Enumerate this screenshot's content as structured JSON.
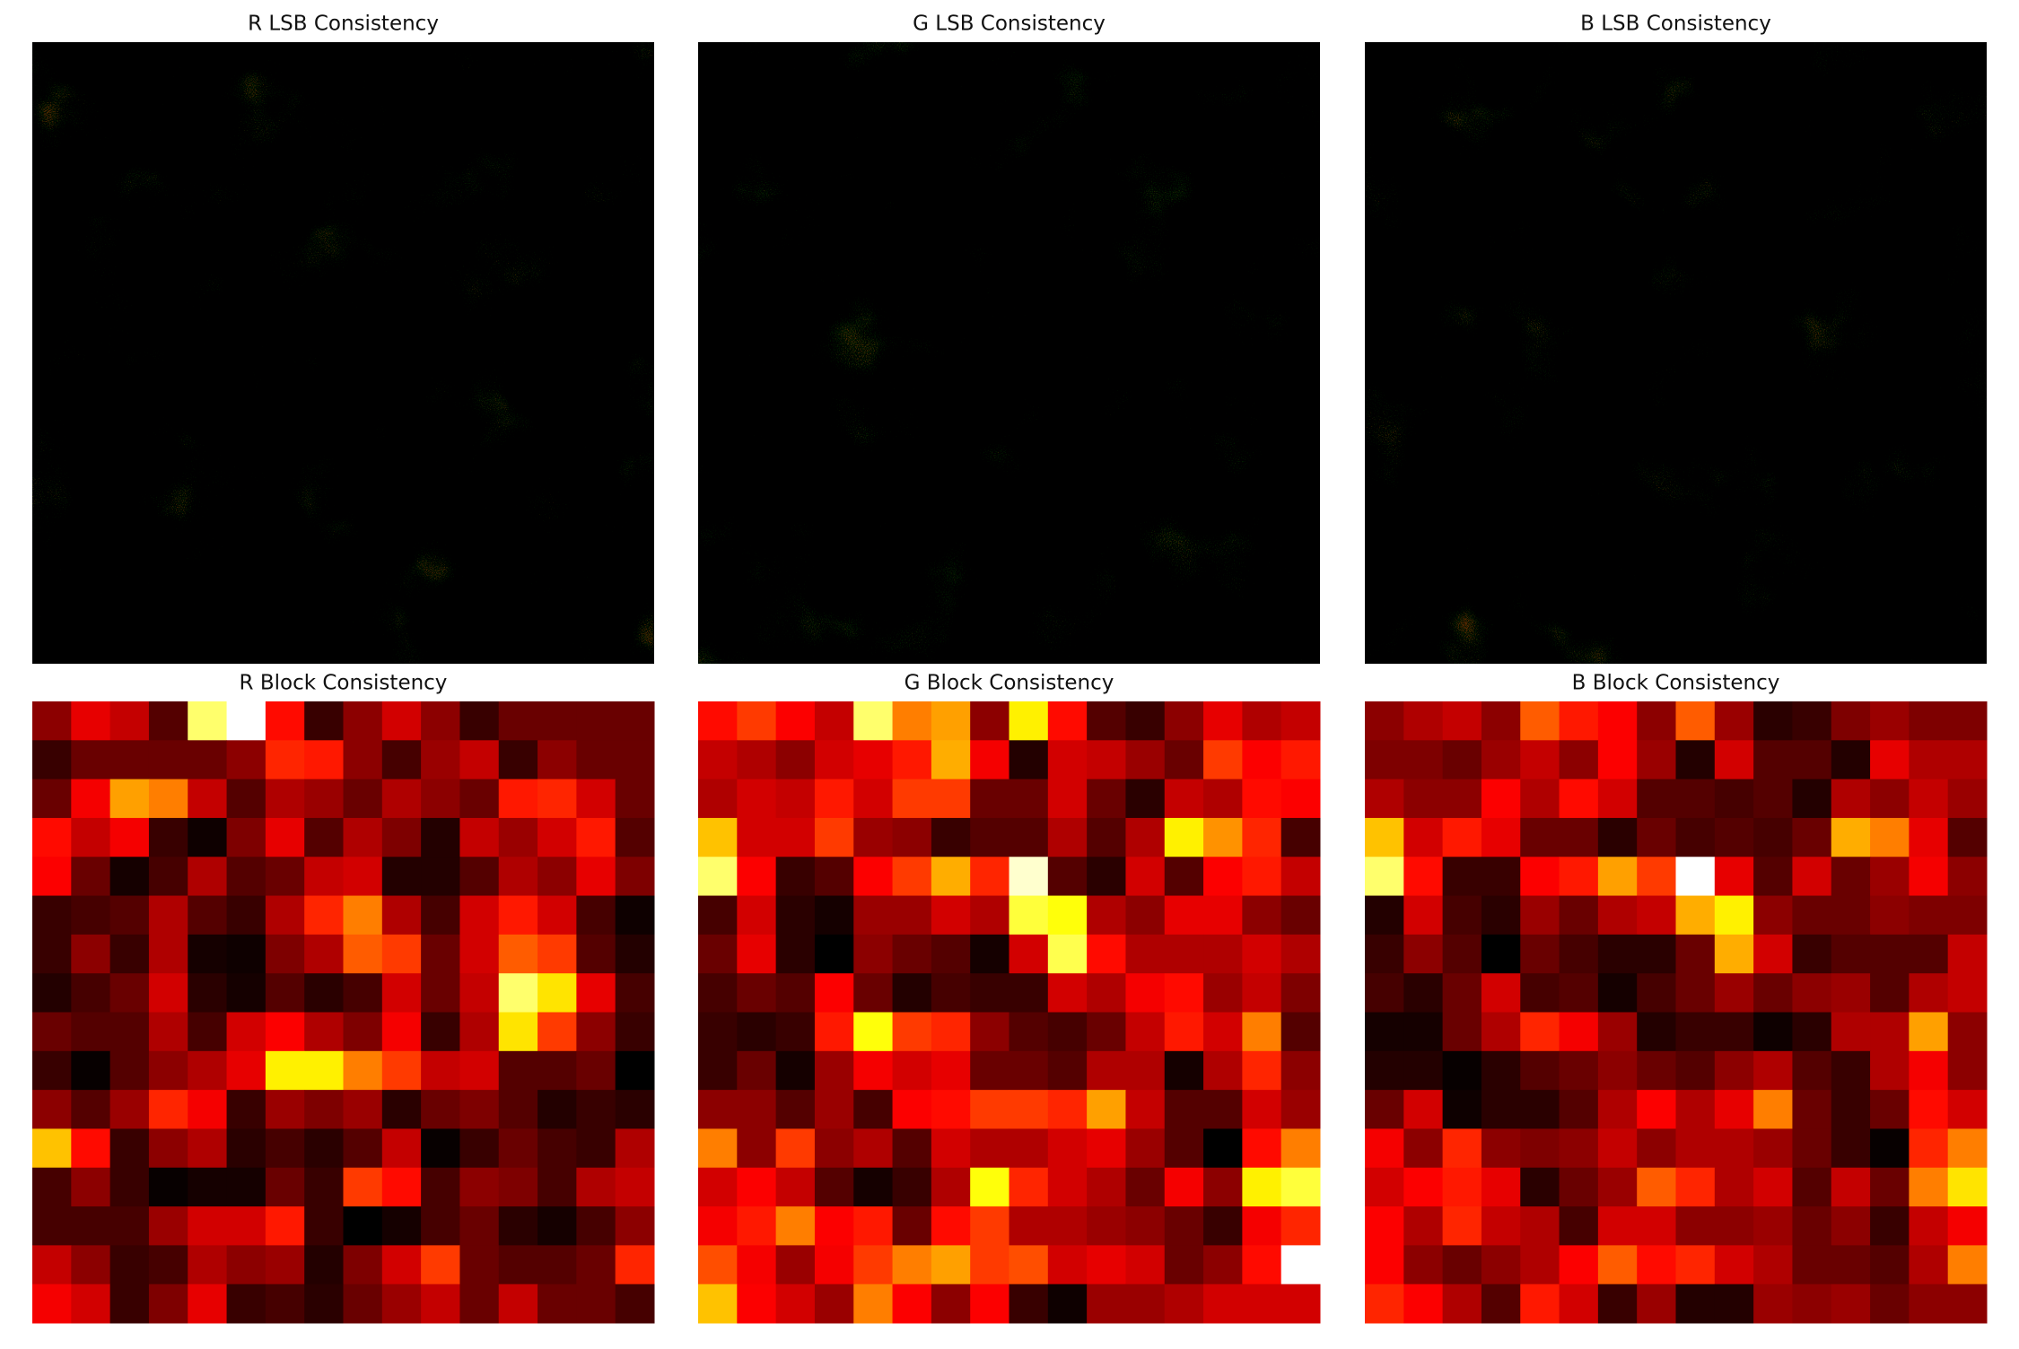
{
  "chart_data": [
    {
      "type": "image",
      "title": "R LSB Consistency",
      "colormap": "hot"
    },
    {
      "type": "image",
      "title": "G LSB Consistency",
      "colormap": "hot"
    },
    {
      "type": "image",
      "title": "B LSB Consistency",
      "colormap": "hot"
    },
    {
      "type": "heatmap",
      "title": "R Block Consistency",
      "colormap": "hot",
      "clim": [
        0,
        1
      ],
      "values": [
        [
          0.2,
          0.33,
          0.28,
          0.12,
          0.85,
          1.0,
          0.38,
          0.08,
          0.2,
          0.3,
          0.2,
          0.08,
          0.15,
          0.15,
          0.15,
          0.15
        ],
        [
          0.08,
          0.15,
          0.15,
          0.15,
          0.15,
          0.2,
          0.42,
          0.4,
          0.2,
          0.1,
          0.22,
          0.28,
          0.08,
          0.2,
          0.15,
          0.15
        ],
        [
          0.15,
          0.35,
          0.6,
          0.55,
          0.28,
          0.12,
          0.25,
          0.22,
          0.15,
          0.25,
          0.2,
          0.15,
          0.4,
          0.42,
          0.3,
          0.15
        ],
        [
          0.38,
          0.28,
          0.35,
          0.08,
          0.02,
          0.18,
          0.33,
          0.12,
          0.25,
          0.18,
          0.05,
          0.28,
          0.22,
          0.3,
          0.4,
          0.12
        ],
        [
          0.36,
          0.15,
          0.03,
          0.1,
          0.25,
          0.12,
          0.15,
          0.28,
          0.3,
          0.05,
          0.05,
          0.12,
          0.25,
          0.2,
          0.33,
          0.18
        ],
        [
          0.08,
          0.1,
          0.12,
          0.25,
          0.12,
          0.08,
          0.25,
          0.42,
          0.55,
          0.25,
          0.1,
          0.3,
          0.4,
          0.3,
          0.1,
          0.02
        ],
        [
          0.08,
          0.2,
          0.08,
          0.25,
          0.03,
          0.02,
          0.18,
          0.25,
          0.5,
          0.45,
          0.15,
          0.3,
          0.5,
          0.45,
          0.12,
          0.05
        ],
        [
          0.05,
          0.1,
          0.15,
          0.3,
          0.06,
          0.03,
          0.12,
          0.06,
          0.1,
          0.3,
          0.15,
          0.28,
          0.85,
          0.7,
          0.33,
          0.1
        ],
        [
          0.15,
          0.12,
          0.12,
          0.25,
          0.1,
          0.3,
          0.36,
          0.25,
          0.18,
          0.35,
          0.08,
          0.25,
          0.7,
          0.45,
          0.2,
          0.08
        ],
        [
          0.08,
          0.01,
          0.12,
          0.2,
          0.25,
          0.33,
          0.72,
          0.72,
          0.55,
          0.45,
          0.28,
          0.3,
          0.12,
          0.12,
          0.15,
          0.0
        ],
        [
          0.2,
          0.12,
          0.22,
          0.42,
          0.35,
          0.08,
          0.22,
          0.18,
          0.22,
          0.06,
          0.15,
          0.18,
          0.12,
          0.05,
          0.08,
          0.06
        ],
        [
          0.65,
          0.38,
          0.08,
          0.2,
          0.25,
          0.06,
          0.1,
          0.06,
          0.12,
          0.28,
          0.01,
          0.08,
          0.15,
          0.1,
          0.08,
          0.25
        ],
        [
          0.1,
          0.2,
          0.08,
          0.01,
          0.03,
          0.03,
          0.15,
          0.08,
          0.45,
          0.38,
          0.1,
          0.2,
          0.18,
          0.1,
          0.25,
          0.28
        ],
        [
          0.1,
          0.1,
          0.1,
          0.22,
          0.3,
          0.3,
          0.4,
          0.08,
          0.0,
          0.03,
          0.1,
          0.15,
          0.06,
          0.03,
          0.1,
          0.2
        ],
        [
          0.28,
          0.2,
          0.08,
          0.1,
          0.25,
          0.2,
          0.22,
          0.05,
          0.18,
          0.3,
          0.45,
          0.15,
          0.12,
          0.12,
          0.15,
          0.42
        ],
        [
          0.35,
          0.3,
          0.08,
          0.18,
          0.33,
          0.08,
          0.1,
          0.06,
          0.15,
          0.22,
          0.28,
          0.15,
          0.28,
          0.15,
          0.15,
          0.1
        ]
      ]
    },
    {
      "type": "heatmap",
      "title": "G Block Consistency",
      "colormap": "hot",
      "clim": [
        0,
        1
      ],
      "values": [
        [
          0.38,
          0.45,
          0.36,
          0.28,
          0.85,
          0.55,
          0.6,
          0.2,
          0.72,
          0.38,
          0.12,
          0.08,
          0.2,
          0.33,
          0.25,
          0.28
        ],
        [
          0.28,
          0.25,
          0.2,
          0.3,
          0.33,
          0.4,
          0.62,
          0.35,
          0.05,
          0.3,
          0.28,
          0.22,
          0.15,
          0.45,
          0.36,
          0.4
        ],
        [
          0.25,
          0.3,
          0.28,
          0.4,
          0.3,
          0.45,
          0.45,
          0.15,
          0.15,
          0.3,
          0.15,
          0.06,
          0.28,
          0.25,
          0.38,
          0.36
        ],
        [
          0.65,
          0.3,
          0.3,
          0.45,
          0.22,
          0.2,
          0.08,
          0.12,
          0.12,
          0.25,
          0.12,
          0.25,
          0.72,
          0.58,
          0.42,
          0.1
        ],
        [
          0.85,
          0.36,
          0.08,
          0.12,
          0.36,
          0.45,
          0.62,
          0.42,
          0.95,
          0.12,
          0.06,
          0.3,
          0.12,
          0.36,
          0.4,
          0.28
        ],
        [
          0.1,
          0.3,
          0.06,
          0.03,
          0.22,
          0.22,
          0.3,
          0.25,
          0.8,
          0.75,
          0.25,
          0.2,
          0.33,
          0.33,
          0.2,
          0.15
        ],
        [
          0.15,
          0.33,
          0.06,
          0.0,
          0.2,
          0.15,
          0.12,
          0.03,
          0.3,
          0.82,
          0.38,
          0.25,
          0.25,
          0.25,
          0.3,
          0.25
        ],
        [
          0.1,
          0.15,
          0.12,
          0.36,
          0.15,
          0.05,
          0.1,
          0.08,
          0.08,
          0.3,
          0.25,
          0.35,
          0.38,
          0.22,
          0.28,
          0.18
        ],
        [
          0.08,
          0.06,
          0.08,
          0.4,
          0.75,
          0.45,
          0.42,
          0.2,
          0.12,
          0.1,
          0.15,
          0.28,
          0.4,
          0.3,
          0.55,
          0.12
        ],
        [
          0.08,
          0.15,
          0.03,
          0.22,
          0.35,
          0.3,
          0.33,
          0.15,
          0.15,
          0.12,
          0.25,
          0.25,
          0.03,
          0.25,
          0.42,
          0.2
        ],
        [
          0.2,
          0.2,
          0.12,
          0.22,
          0.1,
          0.36,
          0.38,
          0.45,
          0.45,
          0.42,
          0.6,
          0.28,
          0.12,
          0.12,
          0.3,
          0.22
        ],
        [
          0.55,
          0.2,
          0.45,
          0.2,
          0.25,
          0.12,
          0.3,
          0.25,
          0.25,
          0.3,
          0.33,
          0.22,
          0.12,
          0.0,
          0.38,
          0.55
        ],
        [
          0.3,
          0.36,
          0.28,
          0.12,
          0.03,
          0.08,
          0.25,
          0.75,
          0.42,
          0.3,
          0.25,
          0.15,
          0.35,
          0.2,
          0.72,
          0.8
        ],
        [
          0.35,
          0.4,
          0.55,
          0.36,
          0.4,
          0.15,
          0.38,
          0.45,
          0.25,
          0.25,
          0.22,
          0.2,
          0.15,
          0.08,
          0.35,
          0.42
        ],
        [
          0.48,
          0.35,
          0.22,
          0.35,
          0.45,
          0.55,
          0.6,
          0.45,
          0.48,
          0.3,
          0.33,
          0.3,
          0.15,
          0.2,
          0.38,
          1.0
        ],
        [
          0.65,
          0.36,
          0.3,
          0.22,
          0.55,
          0.36,
          0.2,
          0.36,
          0.08,
          0.02,
          0.22,
          0.22,
          0.25,
          0.3,
          0.3,
          0.3
        ]
      ]
    },
    {
      "type": "heatmap",
      "title": "B Block Consistency",
      "colormap": "hot",
      "clim": [
        0,
        1
      ],
      "values": [
        [
          0.2,
          0.25,
          0.28,
          0.2,
          0.5,
          0.4,
          0.36,
          0.2,
          0.5,
          0.22,
          0.06,
          0.08,
          0.18,
          0.22,
          0.18,
          0.18
        ],
        [
          0.18,
          0.18,
          0.15,
          0.22,
          0.28,
          0.2,
          0.36,
          0.22,
          0.05,
          0.3,
          0.12,
          0.12,
          0.05,
          0.33,
          0.25,
          0.25
        ],
        [
          0.25,
          0.2,
          0.2,
          0.36,
          0.25,
          0.38,
          0.3,
          0.12,
          0.12,
          0.1,
          0.12,
          0.05,
          0.25,
          0.2,
          0.28,
          0.22
        ],
        [
          0.65,
          0.3,
          0.4,
          0.33,
          0.15,
          0.15,
          0.06,
          0.15,
          0.1,
          0.12,
          0.1,
          0.15,
          0.62,
          0.55,
          0.33,
          0.12
        ],
        [
          0.85,
          0.38,
          0.08,
          0.08,
          0.36,
          0.4,
          0.6,
          0.45,
          1.0,
          0.33,
          0.12,
          0.3,
          0.15,
          0.22,
          0.35,
          0.2
        ],
        [
          0.05,
          0.3,
          0.1,
          0.06,
          0.22,
          0.15,
          0.25,
          0.28,
          0.62,
          0.72,
          0.2,
          0.15,
          0.15,
          0.2,
          0.18,
          0.18
        ],
        [
          0.08,
          0.2,
          0.12,
          0.0,
          0.15,
          0.1,
          0.06,
          0.06,
          0.15,
          0.62,
          0.3,
          0.08,
          0.12,
          0.12,
          0.12,
          0.28
        ],
        [
          0.1,
          0.06,
          0.15,
          0.3,
          0.1,
          0.12,
          0.03,
          0.1,
          0.15,
          0.22,
          0.15,
          0.2,
          0.22,
          0.12,
          0.25,
          0.28
        ],
        [
          0.03,
          0.03,
          0.15,
          0.25,
          0.42,
          0.35,
          0.22,
          0.05,
          0.08,
          0.08,
          0.02,
          0.06,
          0.25,
          0.25,
          0.6,
          0.2
        ],
        [
          0.05,
          0.05,
          0.01,
          0.06,
          0.12,
          0.15,
          0.2,
          0.15,
          0.12,
          0.2,
          0.25,
          0.12,
          0.08,
          0.25,
          0.35,
          0.2
        ],
        [
          0.15,
          0.3,
          0.02,
          0.06,
          0.06,
          0.12,
          0.25,
          0.36,
          0.25,
          0.33,
          0.55,
          0.15,
          0.08,
          0.15,
          0.38,
          0.3
        ],
        [
          0.35,
          0.2,
          0.42,
          0.2,
          0.18,
          0.2,
          0.28,
          0.2,
          0.25,
          0.25,
          0.22,
          0.15,
          0.08,
          0.01,
          0.42,
          0.55
        ],
        [
          0.3,
          0.36,
          0.4,
          0.33,
          0.06,
          0.15,
          0.22,
          0.5,
          0.42,
          0.25,
          0.3,
          0.12,
          0.28,
          0.15,
          0.55,
          0.7
        ],
        [
          0.36,
          0.25,
          0.42,
          0.28,
          0.25,
          0.1,
          0.3,
          0.3,
          0.2,
          0.2,
          0.22,
          0.15,
          0.2,
          0.08,
          0.28,
          0.35
        ],
        [
          0.36,
          0.2,
          0.15,
          0.2,
          0.25,
          0.36,
          0.5,
          0.38,
          0.42,
          0.3,
          0.25,
          0.15,
          0.15,
          0.12,
          0.25,
          0.55
        ],
        [
          0.42,
          0.36,
          0.25,
          0.12,
          0.4,
          0.3,
          0.08,
          0.22,
          0.05,
          0.05,
          0.22,
          0.2,
          0.22,
          0.15,
          0.2,
          0.2
        ]
      ]
    }
  ]
}
